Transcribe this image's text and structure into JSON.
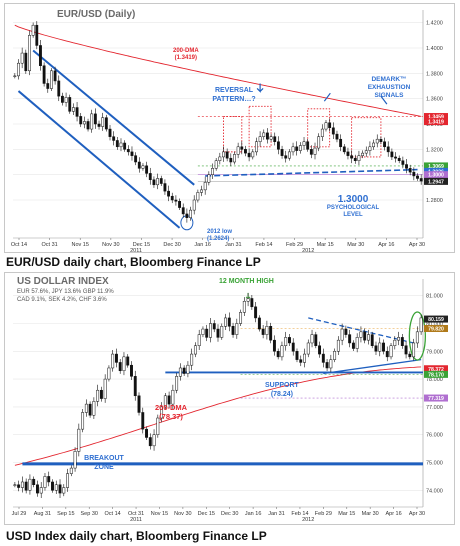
{
  "captions": {
    "top": "EUR/USD daily chart, Bloomberg Finance LP",
    "bottom": "USD Index daily chart, Bloomberg Finance LP"
  },
  "chart_data": [
    {
      "type": "candlestick",
      "title": "EUR/USD (Daily)",
      "ylim": [
        1.25,
        1.43
      ],
      "y_ticks": [
        "1.4200",
        "1.4000",
        "1.3800",
        "1.3600",
        "1.3400",
        "1.3200",
        "1.3000",
        "1.2800"
      ],
      "x_ticks": [
        "Oct 14",
        "Oct 31",
        "Nov 15",
        "Nov 30",
        "Dec 15",
        "Dec 30",
        "Jan 16",
        "Jan 31",
        "Feb 14",
        "Feb 29",
        "Mar 15",
        "Mar 30",
        "Apr 16",
        "Apr 30"
      ],
      "x_years": [
        "2011",
        "2012"
      ],
      "price_tags": [
        {
          "text": "1.3459",
          "value": 1.3459,
          "color": "#e3262f"
        },
        {
          "text": "1.3419",
          "value": 1.3419,
          "color": "#e3262f"
        },
        {
          "text": "1.3069",
          "value": 1.3069,
          "color": "#3aa336"
        },
        {
          "text": "1.3026",
          "value": 1.3026,
          "color": "#2f6fd1"
        },
        {
          "text": "1.3000",
          "value": 1.3,
          "color": "#b06fd0"
        },
        {
          "text": "1.2947",
          "value": 1.2947,
          "color": "#222222"
        }
      ],
      "annotations": {
        "dma_label": "200-DMA",
        "dma_value": "(1.3419)",
        "reversal": "REVERSAL PATTERN…?",
        "demark": "DEMARK™ EXHAUSTION SIGNALS",
        "low_label": "2012 low",
        "low_value": "(1.2624)",
        "level_value": "1.3000",
        "level_label": "PSYCHOLOGICAL LEVEL"
      },
      "closes": [
        1.378,
        1.388,
        1.396,
        1.382,
        1.41,
        1.418,
        1.402,
        1.386,
        1.372,
        1.368,
        1.382,
        1.374,
        1.362,
        1.357,
        1.361,
        1.35,
        1.353,
        1.346,
        1.34,
        1.342,
        1.336,
        1.348,
        1.34,
        1.338,
        1.345,
        1.336,
        1.33,
        1.327,
        1.322,
        1.325,
        1.32,
        1.318,
        1.315,
        1.31,
        1.305,
        1.307,
        1.301,
        1.296,
        1.292,
        1.297,
        1.293,
        1.287,
        1.283,
        1.28,
        1.279,
        1.274,
        1.269,
        1.266,
        1.272,
        1.28,
        1.286,
        1.288,
        1.294,
        1.3,
        1.305,
        1.311,
        1.314,
        1.318,
        1.313,
        1.31,
        1.316,
        1.322,
        1.32,
        1.317,
        1.314,
        1.318,
        1.326,
        1.33,
        1.333,
        1.328,
        1.33,
        1.326,
        1.32,
        1.315,
        1.313,
        1.318,
        1.322,
        1.319,
        1.323,
        1.326,
        1.32,
        1.316,
        1.321,
        1.33,
        1.336,
        1.341,
        1.337,
        1.332,
        1.328,
        1.322,
        1.318,
        1.315,
        1.313,
        1.311,
        1.315,
        1.317,
        1.319,
        1.322,
        1.325,
        1.328,
        1.326,
        1.322,
        1.318,
        1.314,
        1.313,
        1.311,
        1.308,
        1.305,
        1.302,
        1.299,
        1.297,
        1.295
      ]
    },
    {
      "type": "candlestick",
      "title": "US DOLLAR INDEX",
      "weights": [
        "EUR 57.6%, JPY 13.6% GBP 11.9%",
        "CAD 9.1%, SEK 4.2%, CHF 3.6%"
      ],
      "ylim": [
        73.4,
        81.6
      ],
      "y_ticks": [
        "81.000",
        "80.000",
        "79.000",
        "78.000",
        "77.000",
        "76.000",
        "75.000",
        "74.000"
      ],
      "x_ticks": [
        "Jul 29",
        "Aug 31",
        "Sep 15",
        "Sep 30",
        "Oct 14",
        "Oct 31",
        "Nov 15",
        "Nov 30",
        "Dec 15",
        "Dec 30",
        "Jan 16",
        "Jan 31",
        "Feb 14",
        "Feb 29",
        "Mar 15",
        "Mar 30",
        "Apr 16",
        "Apr 30"
      ],
      "x_years": [
        "2011",
        "2012"
      ],
      "price_tags": [
        {
          "text": "80.159",
          "value": 80.159,
          "color": "#222222"
        },
        {
          "text": "79.820",
          "value": 79.82,
          "color": "#b07a1a"
        },
        {
          "text": "78.372",
          "value": 78.372,
          "color": "#e3262f"
        },
        {
          "text": "78.170",
          "value": 78.17,
          "color": "#3aa336"
        },
        {
          "text": "77.319",
          "value": 77.319,
          "color": "#b06fd0"
        }
      ],
      "annotations": {
        "high": "12 MONTH HIGH",
        "support": "SUPPORT",
        "support_value": "(78.24)",
        "dma_label": "200-DMA",
        "dma_value": "(78.37)",
        "breakout": "BREAKOUT ZONE"
      },
      "closes": [
        74.2,
        74.1,
        74.3,
        74.0,
        74.4,
        74.2,
        73.9,
        74.1,
        74.5,
        74.3,
        74.0,
        74.2,
        73.9,
        74.1,
        74.6,
        74.8,
        75.4,
        76.2,
        76.8,
        77.1,
        76.7,
        77.2,
        77.6,
        77.3,
        78.0,
        78.4,
        78.9,
        78.6,
        78.3,
        78.8,
        78.5,
        78.1,
        77.4,
        76.8,
        76.2,
        75.9,
        75.6,
        76.0,
        76.6,
        77.0,
        77.4,
        77.1,
        77.6,
        78.1,
        78.4,
        78.2,
        78.5,
        78.9,
        79.2,
        79.6,
        79.8,
        79.5,
        80.0,
        79.8,
        79.5,
        79.9,
        80.2,
        79.9,
        79.6,
        80.0,
        80.4,
        80.8,
        80.9,
        80.6,
        80.2,
        79.8,
        79.6,
        79.9,
        79.4,
        79.0,
        78.8,
        79.2,
        79.5,
        79.3,
        79.0,
        78.7,
        78.6,
        78.9,
        79.3,
        79.6,
        79.2,
        78.9,
        78.6,
        78.4,
        78.7,
        79.0,
        79.4,
        79.8,
        79.6,
        79.3,
        79.1,
        79.5,
        79.7,
        79.4,
        79.6,
        79.2,
        79.0,
        79.3,
        79.0,
        78.8,
        79.2,
        79.4,
        79.5,
        79.2,
        78.9,
        78.8,
        79.3,
        79.7,
        80.2
      ]
    }
  ]
}
